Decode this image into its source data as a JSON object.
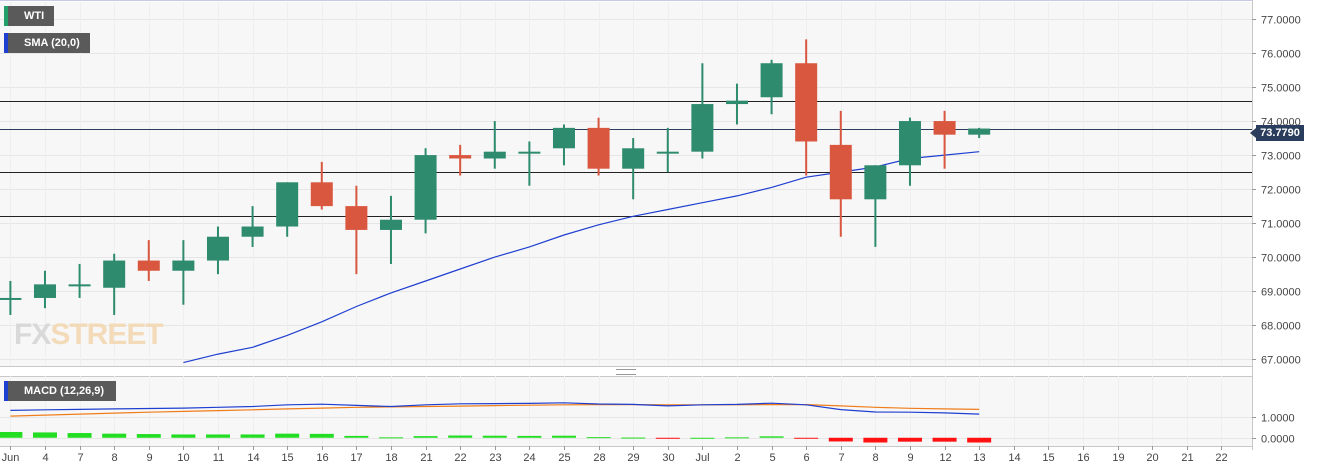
{
  "instrument_label": "WTI",
  "sma_label": "SMA (20,0)",
  "macd_label": "MACD (12,26,9)",
  "logo": {
    "fx": "FX",
    "street": "STREET"
  },
  "colors": {
    "up": "#2e8b6e",
    "down": "#d9573f",
    "sma": "#1f3fd0",
    "macd_line": "#1f3fd0",
    "signal_line": "#f07d1a",
    "hist_pos": "#22dd22",
    "hist_neg": "#ff1111",
    "price_tag": "#2a3d5c"
  },
  "chart_data": [
    {
      "type": "candlestick",
      "title": "WTI",
      "ylim": [
        66.8,
        77.5
      ],
      "y_ticks": [
        "67.0000",
        "68.0000",
        "69.0000",
        "70.0000",
        "71.0000",
        "72.0000",
        "73.0000",
        "74.0000",
        "75.0000",
        "76.0000",
        "77.0000"
      ],
      "last_price": "73.7790",
      "horizontal_levels": [
        74.6,
        72.5,
        71.2
      ],
      "grid": true,
      "candles": [
        {
          "x": "Jun 3",
          "open": 68.8,
          "high": 69.3,
          "low": 68.3,
          "close": 68.8
        },
        {
          "x": "4",
          "open": 68.8,
          "high": 69.6,
          "low": 68.5,
          "close": 69.2
        },
        {
          "x": "7",
          "open": 69.2,
          "high": 69.8,
          "low": 68.8,
          "close": 69.2
        },
        {
          "x": "8",
          "open": 69.1,
          "high": 70.1,
          "low": 68.3,
          "close": 69.9
        },
        {
          "x": "9",
          "open": 69.9,
          "high": 70.5,
          "low": 69.3,
          "close": 69.6
        },
        {
          "x": "10",
          "open": 69.6,
          "high": 70.5,
          "low": 68.6,
          "close": 69.9
        },
        {
          "x": "11",
          "open": 69.9,
          "high": 70.9,
          "low": 69.5,
          "close": 70.6
        },
        {
          "x": "14",
          "open": 70.6,
          "high": 71.5,
          "low": 70.3,
          "close": 70.9
        },
        {
          "x": "15",
          "open": 70.9,
          "high": 72.2,
          "low": 70.6,
          "close": 72.2
        },
        {
          "x": "16",
          "open": 72.2,
          "high": 72.8,
          "low": 71.4,
          "close": 71.5
        },
        {
          "x": "17",
          "open": 71.5,
          "high": 72.1,
          "low": 69.5,
          "close": 70.8
        },
        {
          "x": "18",
          "open": 70.8,
          "high": 71.8,
          "low": 69.8,
          "close": 71.1
        },
        {
          "x": "21",
          "open": 71.1,
          "high": 73.2,
          "low": 70.7,
          "close": 73.0
        },
        {
          "x": "22",
          "open": 73.0,
          "high": 73.3,
          "low": 72.4,
          "close": 72.9
        },
        {
          "x": "23",
          "open": 72.9,
          "high": 74.0,
          "low": 72.6,
          "close": 73.1
        },
        {
          "x": "24",
          "open": 73.1,
          "high": 73.4,
          "low": 72.1,
          "close": 73.1
        },
        {
          "x": "25",
          "open": 73.2,
          "high": 73.9,
          "low": 72.7,
          "close": 73.8
        },
        {
          "x": "28",
          "open": 73.8,
          "high": 74.1,
          "low": 72.4,
          "close": 72.6
        },
        {
          "x": "29",
          "open": 72.6,
          "high": 73.5,
          "low": 71.7,
          "close": 73.2
        },
        {
          "x": "30",
          "open": 73.1,
          "high": 73.8,
          "low": 72.5,
          "close": 73.1
        },
        {
          "x": "Jul 1",
          "open": 73.1,
          "high": 75.7,
          "low": 72.9,
          "close": 74.5
        },
        {
          "x": "2",
          "open": 74.5,
          "high": 75.1,
          "low": 73.9,
          "close": 74.6
        },
        {
          "x": "5",
          "open": 74.7,
          "high": 75.8,
          "low": 74.2,
          "close": 75.7
        },
        {
          "x": "6",
          "open": 75.7,
          "high": 76.4,
          "low": 72.4,
          "close": 73.4
        },
        {
          "x": "7",
          "open": 73.3,
          "high": 74.3,
          "low": 70.6,
          "close": 71.7
        },
        {
          "x": "8",
          "open": 71.7,
          "high": 72.7,
          "low": 70.3,
          "close": 72.7
        },
        {
          "x": "9",
          "open": 72.7,
          "high": 74.1,
          "low": 72.1,
          "close": 74.0
        },
        {
          "x": "12",
          "open": 74.0,
          "high": 74.3,
          "low": 72.6,
          "close": 73.6
        },
        {
          "x": "13",
          "open": 73.6,
          "high": 73.8,
          "low": 73.5,
          "close": 73.78
        }
      ],
      "sma_20": [
        null,
        null,
        null,
        null,
        null,
        66.9,
        67.15,
        67.35,
        67.7,
        68.1,
        68.55,
        68.95,
        69.3,
        69.65,
        70.0,
        70.3,
        70.65,
        70.95,
        71.2,
        71.4,
        71.6,
        71.8,
        72.05,
        72.35,
        72.5,
        72.65,
        72.9,
        73.0,
        73.1
      ]
    },
    {
      "type": "macd",
      "title": "MACD (12,26,9)",
      "ylim": [
        -0.4,
        3.0
      ],
      "y_ticks": [
        "0.0000",
        "1.0000"
      ],
      "macd": [
        1.33,
        1.36,
        1.38,
        1.4,
        1.42,
        1.44,
        1.48,
        1.52,
        1.6,
        1.63,
        1.57,
        1.52,
        1.6,
        1.65,
        1.66,
        1.67,
        1.7,
        1.64,
        1.62,
        1.55,
        1.6,
        1.62,
        1.68,
        1.6,
        1.37,
        1.25,
        1.24,
        1.21,
        1.15
      ],
      "signal": [
        1.05,
        1.1,
        1.15,
        1.2,
        1.24,
        1.28,
        1.32,
        1.36,
        1.4,
        1.44,
        1.48,
        1.5,
        1.52,
        1.54,
        1.56,
        1.58,
        1.6,
        1.61,
        1.61,
        1.6,
        1.6,
        1.6,
        1.61,
        1.61,
        1.55,
        1.48,
        1.43,
        1.4,
        1.38
      ],
      "histogram": [
        0.28,
        0.26,
        0.23,
        0.2,
        0.18,
        0.16,
        0.16,
        0.16,
        0.2,
        0.19,
        0.09,
        0.02,
        0.08,
        0.11,
        0.1,
        0.09,
        0.1,
        0.03,
        0.01,
        -0.05,
        0.0,
        0.02,
        0.07,
        -0.01,
        -0.18,
        -0.23,
        -0.19,
        -0.19,
        -0.23
      ]
    }
  ],
  "x_axis_labels": [
    "Jun",
    "4",
    "7",
    "8",
    "9",
    "10",
    "11",
    "14",
    "15",
    "16",
    "17",
    "18",
    "21",
    "22",
    "23",
    "24",
    "25",
    "28",
    "29",
    "30",
    "Jul",
    "2",
    "5",
    "6",
    "7",
    "8",
    "9",
    "12",
    "13",
    "14",
    "15",
    "16",
    "19",
    "20",
    "21",
    "22"
  ]
}
